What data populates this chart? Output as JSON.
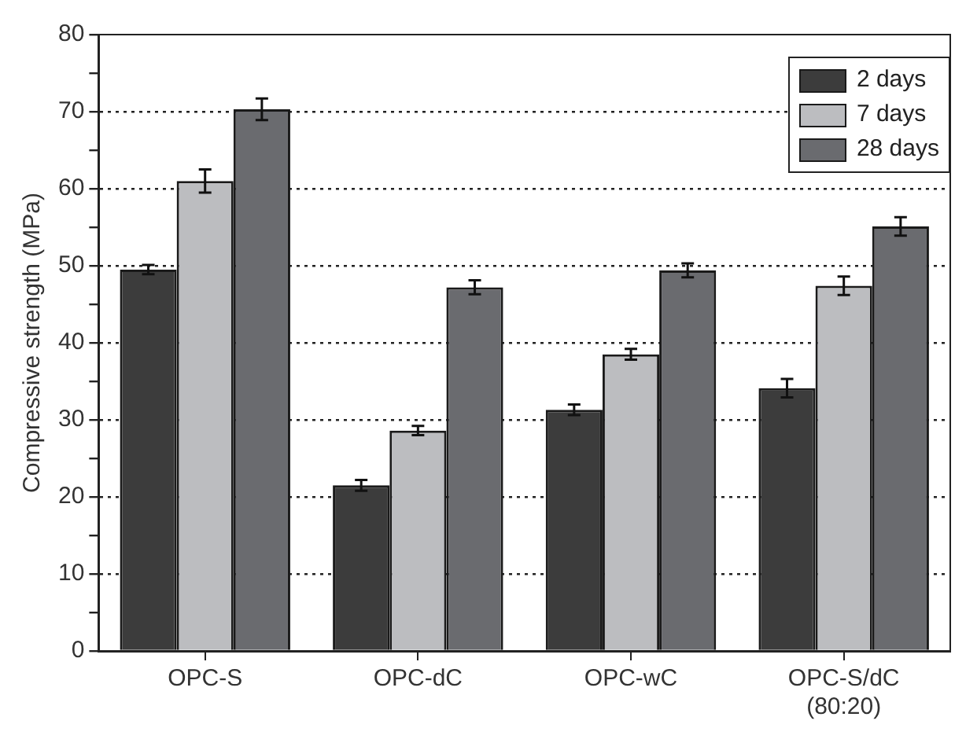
{
  "chart_data": {
    "type": "bar",
    "ylabel": "Compressive strength (MPa)",
    "categories": [
      "OPC-S",
      "OPC-dC",
      "OPC-wC",
      "OPC-S/dC\n(80:20)"
    ],
    "series": [
      {
        "name": "2 days",
        "color": "#3c3c3c",
        "values": [
          49.5,
          21.5,
          31.3,
          34.1
        ],
        "errors": [
          0.6,
          0.7,
          0.7,
          1.2
        ]
      },
      {
        "name": "7 days",
        "color": "#bcbdc0",
        "values": [
          61.0,
          28.6,
          38.5,
          47.4
        ],
        "errors": [
          1.5,
          0.6,
          0.7,
          1.2
        ]
      },
      {
        "name": "28 days",
        "color": "#6a6b6f",
        "values": [
          70.3,
          47.2,
          49.4,
          55.1
        ],
        "errors": [
          1.4,
          0.9,
          0.9,
          1.2
        ]
      }
    ],
    "ylim": [
      0,
      80
    ],
    "yticks": [
      0,
      {
        "value": 5,
        "label": null
      },
      10,
      {
        "value": 15,
        "label": null
      },
      20,
      {
        "value": 25,
        "label": null
      },
      30,
      {
        "value": 35,
        "label": null
      },
      40,
      {
        "value": 45,
        "label": null
      },
      50,
      {
        "value": 55,
        "label": null
      },
      60,
      {
        "value": 65,
        "label": null
      },
      70,
      {
        "value": 75,
        "label": null
      },
      80
    ],
    "grid": "y",
    "legend": "top right"
  }
}
